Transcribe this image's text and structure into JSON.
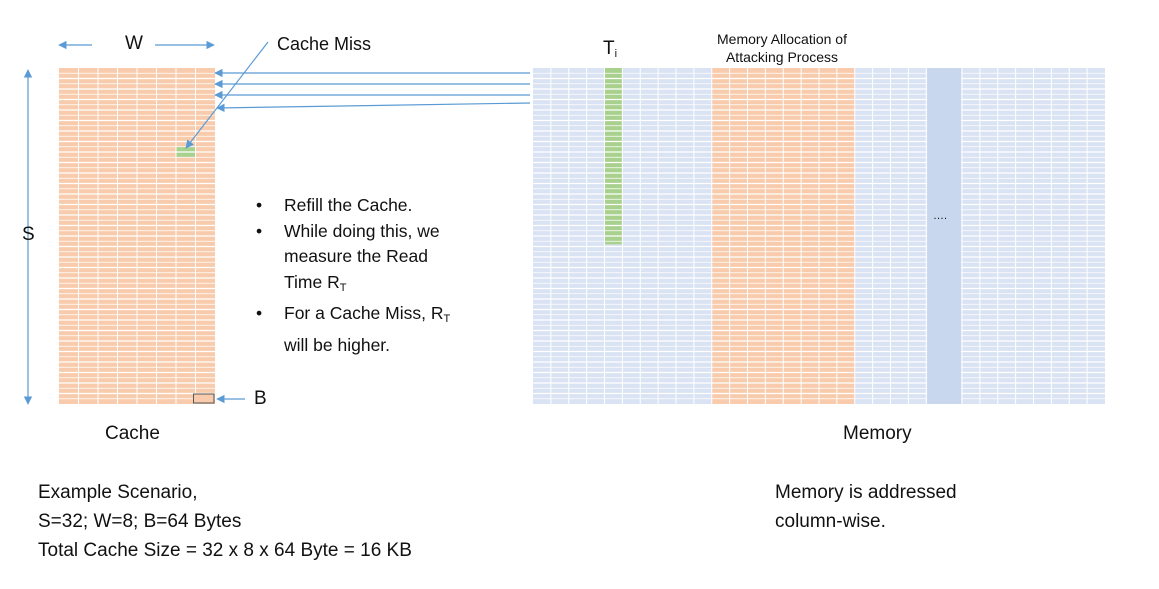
{
  "colors": {
    "cache_fill": "#f8cbad",
    "memory_fill": "#dae3f3",
    "memory_highlight_column": "#c9d7ee",
    "miss_green": "#a9d18e",
    "arrow_blue": "#5b9bd5",
    "grid_line": "#ffffff"
  },
  "cache": {
    "width_label": "W",
    "sets_label": "S",
    "block_label": "B",
    "title": "Cache",
    "miss_label": "Cache Miss",
    "rows": 32,
    "cols": 8,
    "miss_cell": {
      "row": 7,
      "col": 6
    },
    "block_cell": {
      "row": 31,
      "col": 7
    }
  },
  "memory": {
    "title": "Memory",
    "ti_main": "T",
    "ti_sub": "i",
    "alloc_label_line1": "Memory Allocation of",
    "alloc_label_line2": "Attacking Process",
    "ellipsis": "….",
    "rows": 32,
    "cols": 32,
    "ti_column": 4,
    "ti_rows": 16,
    "attack_columns": [
      10,
      17
    ],
    "ellipsis_column": 22
  },
  "notes": {
    "item1": "Refill the Cache.",
    "item2": "While doing this, we measure the Read Time R",
    "item2_sub": "T",
    "item3_a": "For a Cache Miss, R",
    "item3_sub": "T",
    "item3_b": "will be higher."
  },
  "scenario": {
    "line1": "Example Scenario,",
    "line2": "S=32; W=8; B=64 Bytes",
    "line3": "Total Cache Size = 32 x 8 x 64 Byte = 16 KB"
  },
  "memory_note": {
    "line1": "Memory is addressed",
    "line2": "column-wise."
  }
}
